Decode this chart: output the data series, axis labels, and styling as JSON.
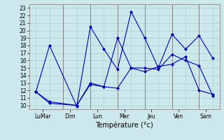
{
  "x_ticks_labels": [
    "LuMar",
    "Dim",
    "Lun",
    "Mer",
    "Jeu",
    "Ven",
    "Sam"
  ],
  "xlabel": "Température (°c)",
  "ylim": [
    9.5,
    23.5
  ],
  "yticks": [
    10,
    11,
    12,
    13,
    14,
    15,
    16,
    17,
    18,
    19,
    20,
    21,
    22,
    23
  ],
  "xlim": [
    -0.5,
    13.5
  ],
  "background_color": "#cce8ec",
  "grid_color": "#aacccc",
  "line_color": "#0000bb",
  "series": [
    {
      "x": [
        0,
        1,
        3,
        4,
        5,
        6,
        7,
        8,
        9,
        10,
        11,
        12,
        13
      ],
      "y": [
        11.8,
        18.0,
        9.9,
        20.5,
        17.5,
        14.8,
        22.5,
        19.0,
        15.0,
        19.5,
        17.5,
        19.3,
        16.3
      ]
    },
    {
      "x": [
        0,
        1,
        3,
        4,
        5,
        6,
        7,
        8,
        9,
        10,
        11,
        12,
        13
      ],
      "y": [
        11.8,
        10.5,
        10.0,
        12.8,
        12.5,
        19.0,
        15.0,
        15.0,
        14.8,
        16.8,
        16.0,
        15.3,
        11.3
      ]
    },
    {
      "x": [
        0,
        1,
        3,
        4,
        5,
        6,
        7,
        8,
        9,
        10,
        11,
        12,
        13
      ],
      "y": [
        11.8,
        10.3,
        10.0,
        13.0,
        12.5,
        12.3,
        15.0,
        14.5,
        15.2,
        15.5,
        16.5,
        12.0,
        11.5
      ]
    }
  ]
}
